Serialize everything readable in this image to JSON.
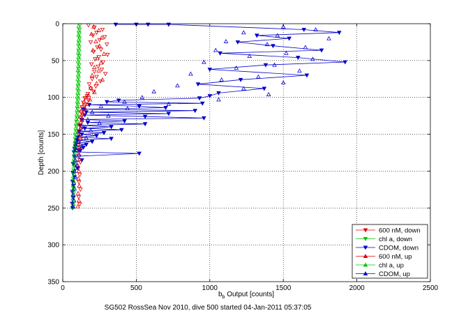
{
  "chart_data": {
    "type": "scatter",
    "title": "",
    "xlabel": {
      "base": "b",
      "sub": "b",
      "rest": " Output [counts]"
    },
    "ylabel": "Depth [counts]",
    "caption": "SG502 RossSea Nov 2010, dive 500 started 04-Jan-2011 05:37:05",
    "xlim": [
      0,
      2500
    ],
    "ylim": [
      0,
      350
    ],
    "y_reversed": true,
    "grid": "dotted",
    "legend_position": "bottom-right",
    "xticks": [
      "0",
      "500",
      "1000",
      "1500",
      "2000",
      "2500"
    ],
    "yticks": [
      "0",
      "50",
      "100",
      "150",
      "200",
      "250",
      "300",
      "350"
    ],
    "xtick_values": [
      0,
      500,
      1000,
      1500,
      2000,
      2500
    ],
    "ytick_values": [
      0,
      50,
      100,
      150,
      200,
      250,
      300,
      350
    ],
    "series": [
      {
        "name": "600 nM, down",
        "color": "#e00000",
        "marker": "triangle-down",
        "line": false,
        "points": [
          [
            175,
            2
          ],
          [
            215,
            5
          ],
          [
            270,
            8
          ],
          [
            230,
            12
          ],
          [
            205,
            16
          ],
          [
            285,
            18
          ],
          [
            250,
            22
          ],
          [
            190,
            25
          ],
          [
            300,
            28
          ],
          [
            235,
            32
          ],
          [
            260,
            35
          ],
          [
            210,
            38
          ],
          [
            305,
            42
          ],
          [
            245,
            45
          ],
          [
            220,
            48
          ],
          [
            275,
            52
          ],
          [
            195,
            55
          ],
          [
            240,
            58
          ],
          [
            265,
            62
          ],
          [
            215,
            65
          ],
          [
            290,
            68
          ],
          [
            230,
            72
          ],
          [
            200,
            75
          ],
          [
            255,
            78
          ],
          [
            180,
            82
          ],
          [
            225,
            85
          ],
          [
            190,
            88
          ],
          [
            210,
            92
          ],
          [
            170,
            95
          ],
          [
            165,
            98
          ],
          [
            150,
            101
          ],
          [
            175,
            104
          ],
          [
            140,
            107
          ],
          [
            155,
            110
          ],
          [
            130,
            113
          ],
          [
            145,
            116
          ],
          [
            125,
            120
          ],
          [
            135,
            124
          ],
          [
            120,
            128
          ],
          [
            130,
            133
          ],
          [
            115,
            138
          ],
          [
            125,
            143
          ],
          [
            110,
            150
          ],
          [
            120,
            158
          ],
          [
            105,
            165
          ],
          [
            115,
            172
          ],
          [
            110,
            180
          ],
          [
            120,
            188
          ],
          [
            105,
            196
          ],
          [
            115,
            205
          ],
          [
            110,
            215
          ],
          [
            120,
            225
          ],
          [
            108,
            235
          ],
          [
            115,
            245
          ]
        ]
      },
      {
        "name": "chl a, down",
        "color": "#00c800",
        "marker": "triangle-down",
        "line": false,
        "points": [
          [
            115,
            2
          ],
          [
            113,
            8
          ],
          [
            112,
            14
          ],
          [
            114,
            20
          ],
          [
            111,
            26
          ],
          [
            113,
            32
          ],
          [
            110,
            38
          ],
          [
            112,
            44
          ],
          [
            109,
            50
          ],
          [
            111,
            56
          ],
          [
            108,
            62
          ],
          [
            110,
            68
          ],
          [
            107,
            74
          ],
          [
            109,
            80
          ],
          [
            106,
            86
          ],
          [
            107,
            92
          ],
          [
            105,
            98
          ],
          [
            104,
            104
          ],
          [
            103,
            110
          ],
          [
            102,
            116
          ],
          [
            100,
            122
          ],
          [
            98,
            128
          ],
          [
            96,
            134
          ],
          [
            94,
            140
          ],
          [
            92,
            146
          ],
          [
            90,
            152
          ],
          [
            88,
            158
          ],
          [
            86,
            164
          ],
          [
            84,
            170
          ],
          [
            82,
            176
          ],
          [
            80,
            182
          ],
          [
            79,
            188
          ],
          [
            78,
            194
          ],
          [
            77,
            200
          ],
          [
            76,
            206
          ],
          [
            75,
            212
          ],
          [
            75,
            218
          ],
          [
            74,
            224
          ],
          [
            74,
            230
          ],
          [
            73,
            236
          ],
          [
            73,
            242
          ],
          [
            72,
            248
          ]
        ]
      },
      {
        "name": "CDOM, down",
        "color": "#0000cc",
        "marker": "triangle-down",
        "line": true,
        "points": [
          [
            360,
            1
          ],
          [
            500,
            1
          ],
          [
            580,
            1
          ],
          [
            720,
            1
          ],
          [
            1640,
            8
          ],
          [
            1880,
            12
          ],
          [
            1320,
            16
          ],
          [
            1540,
            20
          ],
          [
            1190,
            25
          ],
          [
            1430,
            30
          ],
          [
            1760,
            36
          ],
          [
            1070,
            40
          ],
          [
            1600,
            46
          ],
          [
            1920,
            52
          ],
          [
            1380,
            56
          ],
          [
            1000,
            62
          ],
          [
            1660,
            70
          ],
          [
            1210,
            76
          ],
          [
            920,
            82
          ],
          [
            1370,
            88
          ],
          [
            1060,
            94
          ],
          [
            1000,
            98
          ],
          [
            930,
            101
          ],
          [
            380,
            104
          ],
          [
            300,
            106
          ],
          [
            950,
            108
          ],
          [
            180,
            110
          ],
          [
            520,
            112
          ],
          [
            700,
            114
          ],
          [
            140,
            116
          ],
          [
            900,
            118
          ],
          [
            160,
            120
          ],
          [
            720,
            122
          ],
          [
            150,
            124
          ],
          [
            560,
            126
          ],
          [
            960,
            128
          ],
          [
            130,
            130
          ],
          [
            420,
            132
          ],
          [
            170,
            134
          ],
          [
            560,
            136
          ],
          [
            120,
            138
          ],
          [
            330,
            140
          ],
          [
            150,
            142
          ],
          [
            400,
            144
          ],
          [
            110,
            146
          ],
          [
            280,
            148
          ],
          [
            130,
            150
          ],
          [
            230,
            152
          ],
          [
            100,
            154
          ],
          [
            330,
            156
          ],
          [
            95,
            158
          ],
          [
            200,
            160
          ],
          [
            90,
            162
          ],
          [
            160,
            164
          ],
          [
            85,
            166
          ],
          [
            140,
            168
          ],
          [
            80,
            170
          ],
          [
            120,
            172
          ],
          [
            75,
            174
          ],
          [
            520,
            176
          ],
          [
            78,
            180
          ],
          [
            130,
            185
          ],
          [
            70,
            190
          ],
          [
            100,
            196
          ],
          [
            68,
            202
          ],
          [
            80,
            208
          ],
          [
            66,
            214
          ],
          [
            72,
            220
          ],
          [
            65,
            228
          ],
          [
            70,
            236
          ],
          [
            64,
            244
          ],
          [
            66,
            250
          ]
        ]
      },
      {
        "name": "600 nM, up",
        "color": "#e00000",
        "marker": "triangle-up",
        "line": false,
        "points": [
          [
            210,
            4
          ],
          [
            245,
            9
          ],
          [
            195,
            14
          ],
          [
            265,
            19
          ],
          [
            225,
            24
          ],
          [
            250,
            30
          ],
          [
            205,
            36
          ],
          [
            280,
            41
          ],
          [
            235,
            47
          ],
          [
            260,
            53
          ],
          [
            215,
            59
          ],
          [
            245,
            64
          ],
          [
            200,
            70
          ],
          [
            270,
            76
          ],
          [
            230,
            81
          ],
          [
            190,
            87
          ],
          [
            215,
            93
          ],
          [
            175,
            97
          ],
          [
            160,
            100
          ],
          [
            185,
            103
          ],
          [
            145,
            106
          ],
          [
            165,
            109
          ],
          [
            135,
            112
          ],
          [
            150,
            115
          ],
          [
            125,
            118
          ],
          [
            140,
            122
          ],
          [
            118,
            126
          ],
          [
            130,
            131
          ],
          [
            112,
            136
          ],
          [
            122,
            141
          ],
          [
            108,
            147
          ],
          [
            118,
            154
          ],
          [
            104,
            161
          ],
          [
            112,
            168
          ],
          [
            106,
            176
          ],
          [
            114,
            184
          ],
          [
            102,
            192
          ],
          [
            110,
            200
          ],
          [
            106,
            210
          ],
          [
            112,
            220
          ],
          [
            104,
            230
          ],
          [
            110,
            240
          ],
          [
            102,
            248
          ]
        ]
      },
      {
        "name": "chl a, up",
        "color": "#00c800",
        "marker": "triangle-up",
        "line": false,
        "points": [
          [
            108,
            3
          ],
          [
            110,
            9
          ],
          [
            107,
            15
          ],
          [
            109,
            21
          ],
          [
            106,
            27
          ],
          [
            108,
            33
          ],
          [
            105,
            39
          ],
          [
            107,
            45
          ],
          [
            104,
            51
          ],
          [
            106,
            57
          ],
          [
            103,
            63
          ],
          [
            105,
            69
          ],
          [
            102,
            75
          ],
          [
            104,
            81
          ],
          [
            101,
            87
          ],
          [
            102,
            93
          ],
          [
            100,
            99
          ],
          [
            99,
            105
          ],
          [
            98,
            111
          ],
          [
            97,
            117
          ],
          [
            95,
            123
          ],
          [
            93,
            129
          ],
          [
            91,
            135
          ],
          [
            89,
            141
          ],
          [
            87,
            147
          ],
          [
            85,
            153
          ],
          [
            83,
            159
          ],
          [
            81,
            165
          ],
          [
            79,
            171
          ],
          [
            77,
            177
          ],
          [
            76,
            183
          ],
          [
            75,
            189
          ],
          [
            74,
            195
          ],
          [
            73,
            201
          ],
          [
            72,
            207
          ],
          [
            71,
            213
          ],
          [
            71,
            219
          ],
          [
            70,
            225
          ],
          [
            70,
            231
          ],
          [
            69,
            237
          ],
          [
            69,
            243
          ],
          [
            68,
            249
          ]
        ]
      },
      {
        "name": "CDOM, up",
        "color": "#0000cc",
        "marker": "triangle-up",
        "line": false,
        "points": [
          [
            1500,
            4
          ],
          [
            1720,
            8
          ],
          [
            1230,
            12
          ],
          [
            1460,
            16
          ],
          [
            1810,
            20
          ],
          [
            1110,
            24
          ],
          [
            1390,
            28
          ],
          [
            1650,
            32
          ],
          [
            1040,
            36
          ],
          [
            1520,
            40
          ],
          [
            1270,
            44
          ],
          [
            1700,
            48
          ],
          [
            960,
            52
          ],
          [
            1440,
            56
          ],
          [
            1180,
            60
          ],
          [
            1610,
            64
          ],
          [
            870,
            68
          ],
          [
            1330,
            72
          ],
          [
            1080,
            76
          ],
          [
            1500,
            80
          ],
          [
            780,
            84
          ],
          [
            1230,
            88
          ],
          [
            620,
            92
          ],
          [
            1400,
            96
          ],
          [
            540,
            100
          ],
          [
            1060,
            103
          ],
          [
            420,
            106
          ],
          [
            720,
            109
          ],
          [
            260,
            112
          ],
          [
            440,
            115
          ],
          [
            200,
            120
          ],
          [
            310,
            125
          ],
          [
            170,
            130
          ],
          [
            250,
            135
          ],
          [
            140,
            140
          ],
          [
            190,
            145
          ],
          [
            120,
            150
          ],
          [
            160,
            155
          ],
          [
            105,
            160
          ],
          [
            130,
            166
          ],
          [
            95,
            172
          ],
          [
            110,
            178
          ],
          [
            85,
            185
          ],
          [
            95,
            192
          ],
          [
            80,
            200
          ],
          [
            85,
            208
          ],
          [
            75,
            216
          ],
          [
            80,
            224
          ],
          [
            72,
            232
          ],
          [
            76,
            240
          ],
          [
            70,
            248
          ]
        ]
      }
    ]
  }
}
